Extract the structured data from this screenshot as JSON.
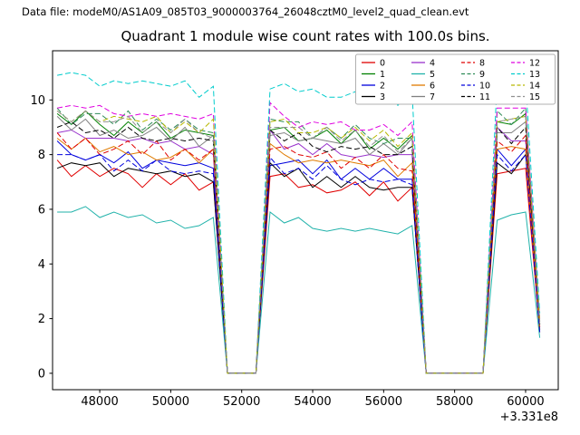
{
  "header": {
    "text": "Data file: modeM0/AS1A09_085T03_9000003764_26048cztM0_level2_quad_clean.evt"
  },
  "chart_data": {
    "type": "line",
    "title": "Quadrant 1 module wise count rates with 100.0s bins.",
    "xlabel": "",
    "ylabel": "",
    "x_axis_offset_label": "+3.331e8",
    "xlim": [
      46670,
      60920
    ],
    "ylim": [
      -0.6,
      11.8
    ],
    "x_ticks": [
      48000,
      50000,
      52000,
      54000,
      56000,
      58000,
      60000
    ],
    "y_ticks": [
      0,
      2,
      4,
      6,
      8,
      10
    ],
    "grid": false,
    "legend": {
      "position": "upper right",
      "columns": 4
    },
    "x": [
      46800,
      47200,
      47600,
      48000,
      48400,
      48800,
      49200,
      49600,
      50000,
      50400,
      50800,
      51200,
      51600,
      52000,
      52400,
      52800,
      53200,
      53600,
      54000,
      54400,
      54800,
      55200,
      55600,
      56000,
      56400,
      56800,
      57200,
      57600,
      58000,
      58400,
      58800,
      59200,
      59600,
      60000,
      60400
    ],
    "series": [
      {
        "name": "0",
        "color": "#e00000",
        "dash": false,
        "values": [
          7.8,
          7.2,
          7.6,
          7.2,
          7.5,
          7.3,
          6.8,
          7.3,
          6.9,
          7.3,
          6.7,
          7.0,
          0,
          0,
          0,
          7.2,
          7.3,
          6.8,
          6.9,
          6.6,
          6.7,
          7.0,
          6.5,
          7.0,
          6.3,
          6.8,
          0,
          0,
          0,
          0,
          0,
          7.3,
          7.4,
          7.5,
          1.5
        ]
      },
      {
        "name": "1",
        "color": "#008000",
        "dash": false,
        "values": [
          9.5,
          9.1,
          9.6,
          9.1,
          8.7,
          9.2,
          8.8,
          9.2,
          8.6,
          8.9,
          8.8,
          8.7,
          0,
          0,
          0,
          8.9,
          9.0,
          8.5,
          8.6,
          8.9,
          8.4,
          8.9,
          8.2,
          8.6,
          8.2,
          8.7,
          0,
          0,
          0,
          0,
          0,
          9.2,
          9.1,
          9.5,
          1.6
        ]
      },
      {
        "name": "2",
        "color": "#0000dd",
        "dash": false,
        "values": [
          8.5,
          8.0,
          7.8,
          8.0,
          7.7,
          8.1,
          7.5,
          7.8,
          7.7,
          7.6,
          7.7,
          7.5,
          0,
          0,
          0,
          7.6,
          7.7,
          7.8,
          7.3,
          7.8,
          7.1,
          7.5,
          7.1,
          7.5,
          7.1,
          7.1,
          0,
          0,
          0,
          0,
          0,
          8.2,
          7.6,
          8.2,
          1.7
        ]
      },
      {
        "name": "3",
        "color": "#000000",
        "dash": false,
        "values": [
          7.5,
          7.7,
          7.6,
          7.7,
          7.2,
          7.5,
          7.4,
          7.3,
          7.4,
          7.2,
          7.3,
          7.0,
          0,
          0,
          0,
          7.7,
          7.2,
          7.5,
          6.8,
          7.2,
          6.8,
          7.2,
          6.8,
          6.7,
          6.8,
          6.8,
          0,
          0,
          0,
          0,
          0,
          7.7,
          7.3,
          8.0,
          1.8
        ]
      },
      {
        "name": "4",
        "color": "#9932cc",
        "dash": false,
        "values": [
          8.8,
          8.9,
          8.6,
          8.6,
          8.6,
          8.5,
          8.6,
          8.4,
          8.5,
          8.2,
          8.3,
          8.0,
          0,
          0,
          0,
          8.9,
          8.2,
          8.4,
          8.0,
          8.4,
          8.0,
          7.9,
          8.0,
          7.9,
          8.0,
          8.0,
          0,
          0,
          0,
          0,
          0,
          9.0,
          8.5,
          8.5,
          1.9
        ]
      },
      {
        "name": "5",
        "color": "#20b2aa",
        "dash": false,
        "values": [
          5.9,
          5.9,
          6.1,
          5.7,
          5.9,
          5.7,
          5.8,
          5.5,
          5.6,
          5.3,
          5.4,
          5.7,
          0,
          0,
          0,
          5.9,
          5.5,
          5.7,
          5.3,
          5.2,
          5.3,
          5.2,
          5.3,
          5.2,
          5.1,
          5.4,
          0,
          0,
          0,
          0,
          0,
          5.6,
          5.8,
          5.9,
          1.3
        ]
      },
      {
        "name": "6",
        "color": "#e07b00",
        "dash": false,
        "values": [
          8.6,
          8.2,
          8.6,
          8.1,
          8.3,
          8.0,
          8.1,
          7.8,
          7.9,
          8.2,
          7.7,
          8.2,
          0,
          0,
          0,
          8.4,
          8.0,
          7.7,
          7.8,
          7.7,
          7.8,
          7.7,
          7.6,
          7.8,
          7.2,
          7.7,
          0,
          0,
          0,
          0,
          0,
          8.2,
          8.3,
          8.2,
          1.6
        ]
      },
      {
        "name": "7",
        "color": "#808080",
        "dash": false,
        "values": [
          9.4,
          8.9,
          9.3,
          8.7,
          8.9,
          8.6,
          8.7,
          9.0,
          8.5,
          9.0,
          8.3,
          8.7,
          0,
          0,
          0,
          8.7,
          8.8,
          8.5,
          8.6,
          8.5,
          8.4,
          8.6,
          8.0,
          8.4,
          8.0,
          8.6,
          0,
          0,
          0,
          0,
          0,
          8.8,
          8.8,
          9.2,
          1.8
        ]
      },
      {
        "name": "8",
        "color": "#e00000",
        "dash": true,
        "values": [
          8.8,
          8.2,
          8.6,
          8.0,
          8.2,
          8.5,
          8.0,
          8.5,
          7.8,
          8.2,
          7.8,
          8.2,
          0,
          0,
          0,
          8.2,
          8.3,
          8.0,
          7.9,
          8.1,
          7.5,
          7.9,
          7.5,
          8.0,
          7.5,
          7.4,
          0,
          0,
          0,
          0,
          0,
          8.5,
          8.1,
          8.7,
          1.7
        ]
      },
      {
        "name": "9",
        "color": "#2e8b57",
        "dash": true,
        "values": [
          9.7,
          9.1,
          9.5,
          9.5,
          9.1,
          9.6,
          8.9,
          9.3,
          8.9,
          9.3,
          8.9,
          8.8,
          0,
          0,
          0,
          9.3,
          9.2,
          9.2,
          8.6,
          9.0,
          8.6,
          9.1,
          8.6,
          8.4,
          8.6,
          8.6,
          0,
          0,
          0,
          0,
          0,
          9.6,
          9.1,
          9.7,
          1.9
        ]
      },
      {
        "name": "10",
        "color": "#0000dd",
        "dash": true,
        "values": [
          8.0,
          8.0,
          7.8,
          8.0,
          7.4,
          7.8,
          7.4,
          7.8,
          7.4,
          7.3,
          7.4,
          7.3,
          0,
          0,
          0,
          7.9,
          7.3,
          7.5,
          7.1,
          7.6,
          7.1,
          6.9,
          7.1,
          7.0,
          7.1,
          6.9,
          0,
          0,
          0,
          0,
          0,
          8.0,
          7.4,
          8.0,
          1.5
        ]
      },
      {
        "name": "11",
        "color": "#000000",
        "dash": true,
        "values": [
          9.0,
          9.2,
          8.8,
          8.9,
          8.6,
          9.0,
          8.6,
          8.5,
          8.6,
          8.5,
          8.6,
          8.5,
          0,
          0,
          0,
          8.9,
          8.5,
          8.8,
          8.3,
          8.1,
          8.3,
          8.2,
          8.3,
          8.0,
          8.0,
          8.3,
          0,
          0,
          0,
          0,
          0,
          9.0,
          8.4,
          9.0,
          1.8
        ]
      },
      {
        "name": "12",
        "color": "#e000e0",
        "dash": true,
        "values": [
          9.7,
          9.8,
          9.7,
          9.8,
          9.5,
          9.4,
          9.5,
          9.4,
          9.5,
          9.4,
          9.3,
          9.5,
          0,
          0,
          0,
          9.9,
          9.4,
          9.0,
          9.2,
          9.1,
          9.2,
          8.9,
          8.9,
          9.1,
          8.7,
          9.2,
          0,
          0,
          0,
          0,
          0,
          9.7,
          9.7,
          9.7,
          2.0
        ]
      },
      {
        "name": "13",
        "color": "#00cccc",
        "dash": true,
        "values": [
          10.9,
          11.0,
          10.9,
          10.5,
          10.7,
          10.6,
          10.7,
          10.6,
          10.5,
          10.7,
          10.1,
          10.5,
          0,
          0,
          0,
          10.4,
          10.6,
          10.3,
          10.4,
          10.1,
          10.1,
          10.3,
          9.9,
          10.3,
          9.8,
          10.3,
          0,
          0,
          0,
          0,
          0,
          10.7,
          10.9,
          10.7,
          2.2
        ]
      },
      {
        "name": "14",
        "color": "#b8b800",
        "dash": true,
        "values": [
          9.6,
          9.2,
          9.6,
          9.2,
          9.4,
          9.3,
          9.2,
          9.4,
          8.8,
          9.2,
          8.8,
          9.3,
          0,
          0,
          0,
          9.2,
          9.3,
          8.8,
          8.8,
          9.0,
          8.6,
          9.0,
          8.5,
          8.9,
          8.3,
          8.8,
          0,
          0,
          0,
          0,
          0,
          9.2,
          9.3,
          9.4,
          1.9
        ]
      },
      {
        "name": "15",
        "color": "#909090",
        "dash": true,
        "values": [
          9.6,
          9.2,
          9.6,
          9.2,
          9.2,
          9.4,
          8.8,
          9.2,
          8.8,
          9.3,
          8.8,
          8.6,
          0,
          0,
          0,
          9.0,
          9.0,
          9.0,
          8.6,
          9.0,
          8.5,
          8.9,
          8.3,
          8.7,
          8.1,
          8.6,
          0,
          0,
          0,
          0,
          0,
          9.2,
          9.3,
          9.4,
          1.8
        ]
      }
    ]
  }
}
